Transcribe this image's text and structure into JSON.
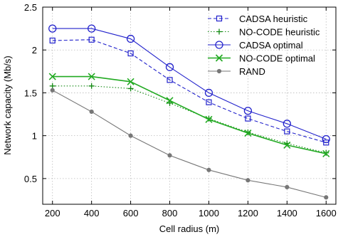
{
  "chart_data": {
    "type": "line",
    "xlabel": "Cell radius (m)",
    "ylabel": "Network capacity (Mb/s)",
    "x": [
      200,
      400,
      600,
      800,
      1000,
      1200,
      1400,
      1600
    ],
    "xlim": [
      150,
      1650
    ],
    "ylim": [
      0.2,
      2.5
    ],
    "xticks": [
      200,
      400,
      600,
      800,
      1000,
      1200,
      1400,
      1600
    ],
    "yticks": [
      0.5,
      1,
      1.5,
      2,
      2.5
    ],
    "ytick_labels": [
      "0.5",
      "1",
      "1.5",
      "2",
      "2.5"
    ],
    "grid": true,
    "legend_position": "top-right",
    "series": [
      {
        "name": "CADSA heuristic",
        "values": [
          2.11,
          2.12,
          1.96,
          1.65,
          1.39,
          1.2,
          1.05,
          0.92
        ],
        "color": "#2222cc",
        "dash": "dashed",
        "marker": "square"
      },
      {
        "name": "NO-CODE heuristic",
        "values": [
          1.58,
          1.58,
          1.55,
          1.38,
          1.2,
          1.04,
          0.91,
          0.8
        ],
        "color": "#118811",
        "dash": "dotted",
        "marker": "plus"
      },
      {
        "name": "CADSA optimal",
        "values": [
          2.25,
          2.25,
          2.13,
          1.8,
          1.5,
          1.29,
          1.14,
          0.96
        ],
        "color": "#2222cc",
        "dash": "solid",
        "marker": "circle"
      },
      {
        "name": "NO-CODE optimal",
        "values": [
          1.69,
          1.69,
          1.63,
          1.41,
          1.19,
          1.03,
          0.89,
          0.79
        ],
        "color": "#22aa22",
        "dash": "solid",
        "marker": "x"
      },
      {
        "name": "RAND",
        "values": [
          1.53,
          1.28,
          1.0,
          0.77,
          0.6,
          0.48,
          0.4,
          0.28
        ],
        "color": "#777777",
        "dash": "solid",
        "marker": "dot"
      }
    ]
  }
}
